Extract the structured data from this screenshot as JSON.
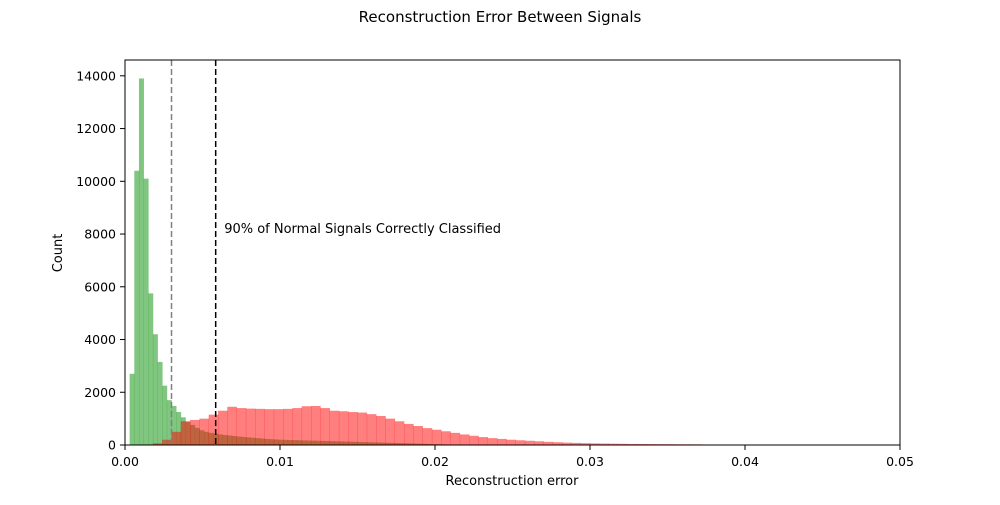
{
  "chart_data": {
    "type": "bar",
    "title": "Reconstruction Error Between Signals",
    "xlabel": "Reconstruction error",
    "ylabel": "Count",
    "xlim": [
      0.0,
      0.05
    ],
    "ylim": [
      0,
      14600
    ],
    "x_ticks": [
      {
        "value": 0.0,
        "label": "0.00"
      },
      {
        "value": 0.01,
        "label": "0.01"
      },
      {
        "value": 0.02,
        "label": "0.02"
      },
      {
        "value": 0.03,
        "label": "0.03"
      },
      {
        "value": 0.04,
        "label": "0.04"
      },
      {
        "value": 0.05,
        "label": "0.05"
      }
    ],
    "y_ticks": [
      {
        "value": 0,
        "label": "0"
      },
      {
        "value": 2000,
        "label": "2000"
      },
      {
        "value": 4000,
        "label": "4000"
      },
      {
        "value": 6000,
        "label": "6000"
      },
      {
        "value": 8000,
        "label": "8000"
      },
      {
        "value": 10000,
        "label": "10000"
      },
      {
        "value": 12000,
        "label": "12000"
      },
      {
        "value": 14000,
        "label": "14000"
      }
    ],
    "grid": false,
    "series": [
      {
        "color": "#2ca02c",
        "opacity": 0.6,
        "bin_edges": [
          0.0003,
          0.0006,
          0.0009,
          0.0012,
          0.0015,
          0.0018,
          0.0021,
          0.0024,
          0.0027,
          0.003,
          0.0033,
          0.0036,
          0.0039,
          0.0042,
          0.0045,
          0.0048,
          0.0051,
          0.0054,
          0.0057,
          0.006,
          0.0063,
          0.0066,
          0.0069,
          0.0072,
          0.0075,
          0.0078,
          0.0081,
          0.0084,
          0.0087,
          0.009,
          0.0093,
          0.0096,
          0.0099,
          0.0102,
          0.0105,
          0.0108,
          0.0111,
          0.0114,
          0.0117,
          0.012,
          0.0123,
          0.0126,
          0.0129,
          0.0132,
          0.0135,
          0.0138,
          0.0141,
          0.0144,
          0.0147,
          0.015,
          0.0153,
          0.0156,
          0.0159,
          0.0162,
          0.0165,
          0.0168,
          0.0171,
          0.0174,
          0.0177,
          0.018,
          0.0183,
          0.0186,
          0.0189,
          0.0192,
          0.0195,
          0.0198,
          0.0201,
          0.0204,
          0.0207,
          0.021
        ],
        "counts": [
          2700,
          10400,
          13900,
          10100,
          5750,
          4200,
          3150,
          2250,
          1700,
          1480,
          1250,
          1050,
          880,
          760,
          650,
          560,
          500,
          460,
          430,
          400,
          380,
          360,
          340,
          320,
          305,
          290,
          275,
          260,
          245,
          230,
          220,
          210,
          200,
          195,
          190,
          185,
          180,
          175,
          170,
          165,
          160,
          155,
          150,
          145,
          140,
          135,
          130,
          125,
          120,
          115,
          110,
          105,
          100,
          95,
          90,
          85,
          80,
          75,
          70,
          65,
          60,
          55,
          50,
          45,
          40,
          35,
          30,
          25,
          20
        ]
      },
      {
        "color": "#ff0000",
        "opacity": 0.5,
        "bin_edges": [
          0.0012,
          0.0018,
          0.0024,
          0.003,
          0.0036,
          0.0042,
          0.0048,
          0.0054,
          0.006,
          0.0066,
          0.0072,
          0.0078,
          0.0084,
          0.009,
          0.0096,
          0.0102,
          0.0108,
          0.0114,
          0.012,
          0.0126,
          0.0132,
          0.0138,
          0.0144,
          0.015,
          0.0156,
          0.0162,
          0.0168,
          0.0174,
          0.018,
          0.0186,
          0.0192,
          0.0198,
          0.0204,
          0.021,
          0.0216,
          0.0222,
          0.0228,
          0.0234,
          0.024,
          0.0246,
          0.0252,
          0.0258,
          0.0264,
          0.027,
          0.0276,
          0.0282,
          0.0288,
          0.0294,
          0.03,
          0.0306,
          0.0312,
          0.0318,
          0.0324,
          0.033,
          0.0336,
          0.0342,
          0.0348,
          0.0354,
          0.036,
          0.0366,
          0.0372
        ],
        "counts": [
          20,
          60,
          200,
          500,
          900,
          950,
          1000,
          1150,
          1300,
          1450,
          1400,
          1380,
          1370,
          1360,
          1360,
          1370,
          1400,
          1470,
          1480,
          1400,
          1300,
          1280,
          1250,
          1230,
          1170,
          1100,
          1000,
          900,
          800,
          720,
          640,
          580,
          520,
          460,
          400,
          350,
          300,
          260,
          230,
          200,
          180,
          160,
          140,
          120,
          105,
          90,
          80,
          70,
          60,
          55,
          50,
          45,
          40,
          38,
          35,
          32,
          30,
          28,
          26,
          24
        ]
      }
    ],
    "reference_lines": [
      {
        "x": 0.003,
        "color": "#808080",
        "style": "dashed"
      },
      {
        "x": 0.00585,
        "color": "#000000",
        "style": "dashed"
      }
    ],
    "annotation": {
      "text": "90% of Normal Signals Correctly Classified",
      "x": 0.0064,
      "y": 8000
    }
  }
}
